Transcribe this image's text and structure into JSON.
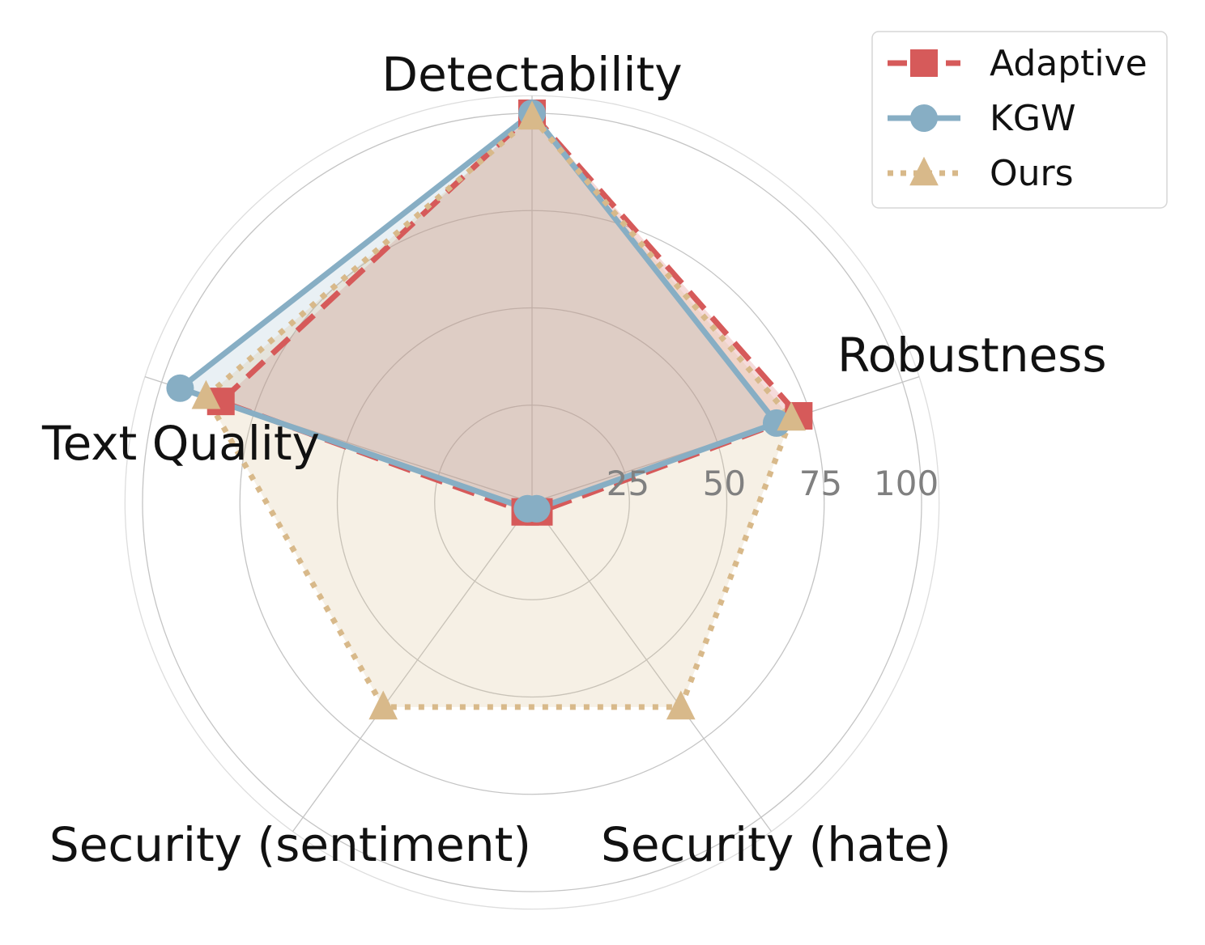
{
  "chart_data": {
    "type": "radar",
    "axes": [
      "Detectability",
      "Robustness",
      "Security (hate)",
      "Security (sentiment)",
      "Text Quality"
    ],
    "rlim": [
      0,
      100
    ],
    "rticks": [
      25,
      50,
      75,
      100
    ],
    "rtick_labels": [
      "25",
      "50",
      "75",
      "100"
    ],
    "grid": true,
    "legend_position": "top-right",
    "series": [
      {
        "name": "Adaptive",
        "color": "#d65a5a",
        "line": "dashed",
        "marker": "square",
        "values": [
          100,
          72,
          3,
          3,
          84
        ]
      },
      {
        "name": "KGW",
        "color": "#87aec4",
        "line": "solid",
        "marker": "circle",
        "values": [
          100,
          66,
          2,
          2,
          95
        ]
      },
      {
        "name": "Ours",
        "color": "#d8b98a",
        "line": "dotted",
        "marker": "triangle",
        "values": [
          99,
          70,
          65,
          65,
          88
        ]
      }
    ]
  }
}
